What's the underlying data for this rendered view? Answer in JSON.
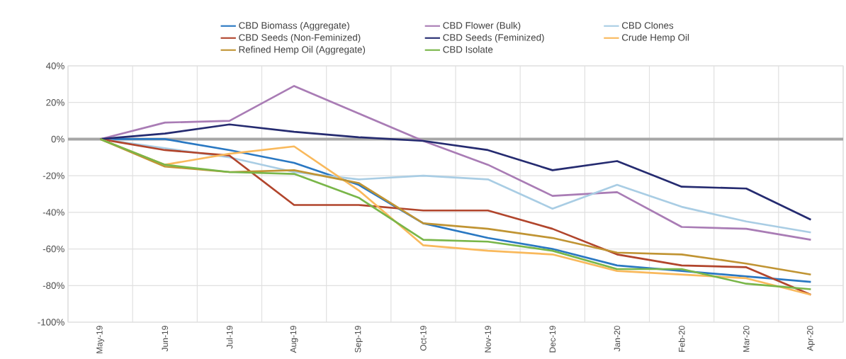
{
  "chart_data": {
    "type": "line",
    "categories": [
      "May-19",
      "Jun-19",
      "Jul-19",
      "Aug-19",
      "Sep-19",
      "Oct-19",
      "Nov-19",
      "Dec-19",
      "Jan-20",
      "Feb-20",
      "Mar-20",
      "Apr-20"
    ],
    "series": [
      {
        "name": "CBD Biomass (Aggregate)",
        "color": "#2a78c2",
        "values": [
          0,
          0,
          -6,
          -13,
          -25,
          -46,
          -54,
          -60,
          -69,
          -72,
          -75,
          -78
        ]
      },
      {
        "name": "CBD Flower (Bulk)",
        "color": "#a97cb5",
        "values": [
          0,
          9,
          10,
          29,
          14,
          -1,
          -14,
          -31,
          -29,
          -48,
          -49,
          -55
        ]
      },
      {
        "name": "CBD Clones",
        "color": "#a9cde4",
        "values": [
          0,
          -5,
          -10,
          -18,
          -22,
          -20,
          -22,
          -38,
          -25,
          -37,
          -45,
          -51
        ]
      },
      {
        "name": "CBD Seeds (Non-Feminized)",
        "color": "#b1452c",
        "values": [
          0,
          -6,
          -9,
          -36,
          -36,
          -39,
          -39,
          -49,
          -63,
          -69,
          -70,
          -85
        ]
      },
      {
        "name": "CBD Seeds (Feminized)",
        "color": "#252b70",
        "values": [
          0,
          3,
          8,
          4,
          1,
          -1,
          -6,
          -17,
          -12,
          -26,
          -27,
          -44
        ]
      },
      {
        "name": "Crude Hemp Oil",
        "color": "#f9b95c",
        "values": [
          0,
          -14,
          -8,
          -4,
          -28,
          -58,
          -61,
          -63,
          -72,
          -74,
          -76,
          -85
        ]
      },
      {
        "name": "Refined Hemp Oil (Aggregate)",
        "color": "#c09433",
        "values": [
          0,
          -15,
          -18,
          -17,
          -24,
          -46,
          -49,
          -54,
          -62,
          -63,
          -68,
          -74
        ]
      },
      {
        "name": "CBD Isolate",
        "color": "#79b649",
        "values": [
          0,
          -14,
          -18,
          -19,
          -32,
          -55,
          -56,
          -61,
          -71,
          -71,
          -79,
          -82
        ]
      }
    ],
    "ylim": [
      -100,
      40
    ],
    "yticks": [
      {
        "value": -100,
        "label": "-100%"
      },
      {
        "value": -80,
        "label": "-80%"
      },
      {
        "value": -60,
        "label": "-60%"
      },
      {
        "value": -40,
        "label": "-40%"
      },
      {
        "value": -20,
        "label": "-20%"
      },
      {
        "value": 0,
        "label": "0%"
      },
      {
        "value": 20,
        "label": "20%"
      },
      {
        "value": 40,
        "label": "40%"
      }
    ],
    "ref_lines": [
      {
        "axis": "y",
        "value": 0,
        "color": "#a6a6a6"
      }
    ],
    "grid": true,
    "legend": "top",
    "marker": "none",
    "line_style": "solid"
  }
}
